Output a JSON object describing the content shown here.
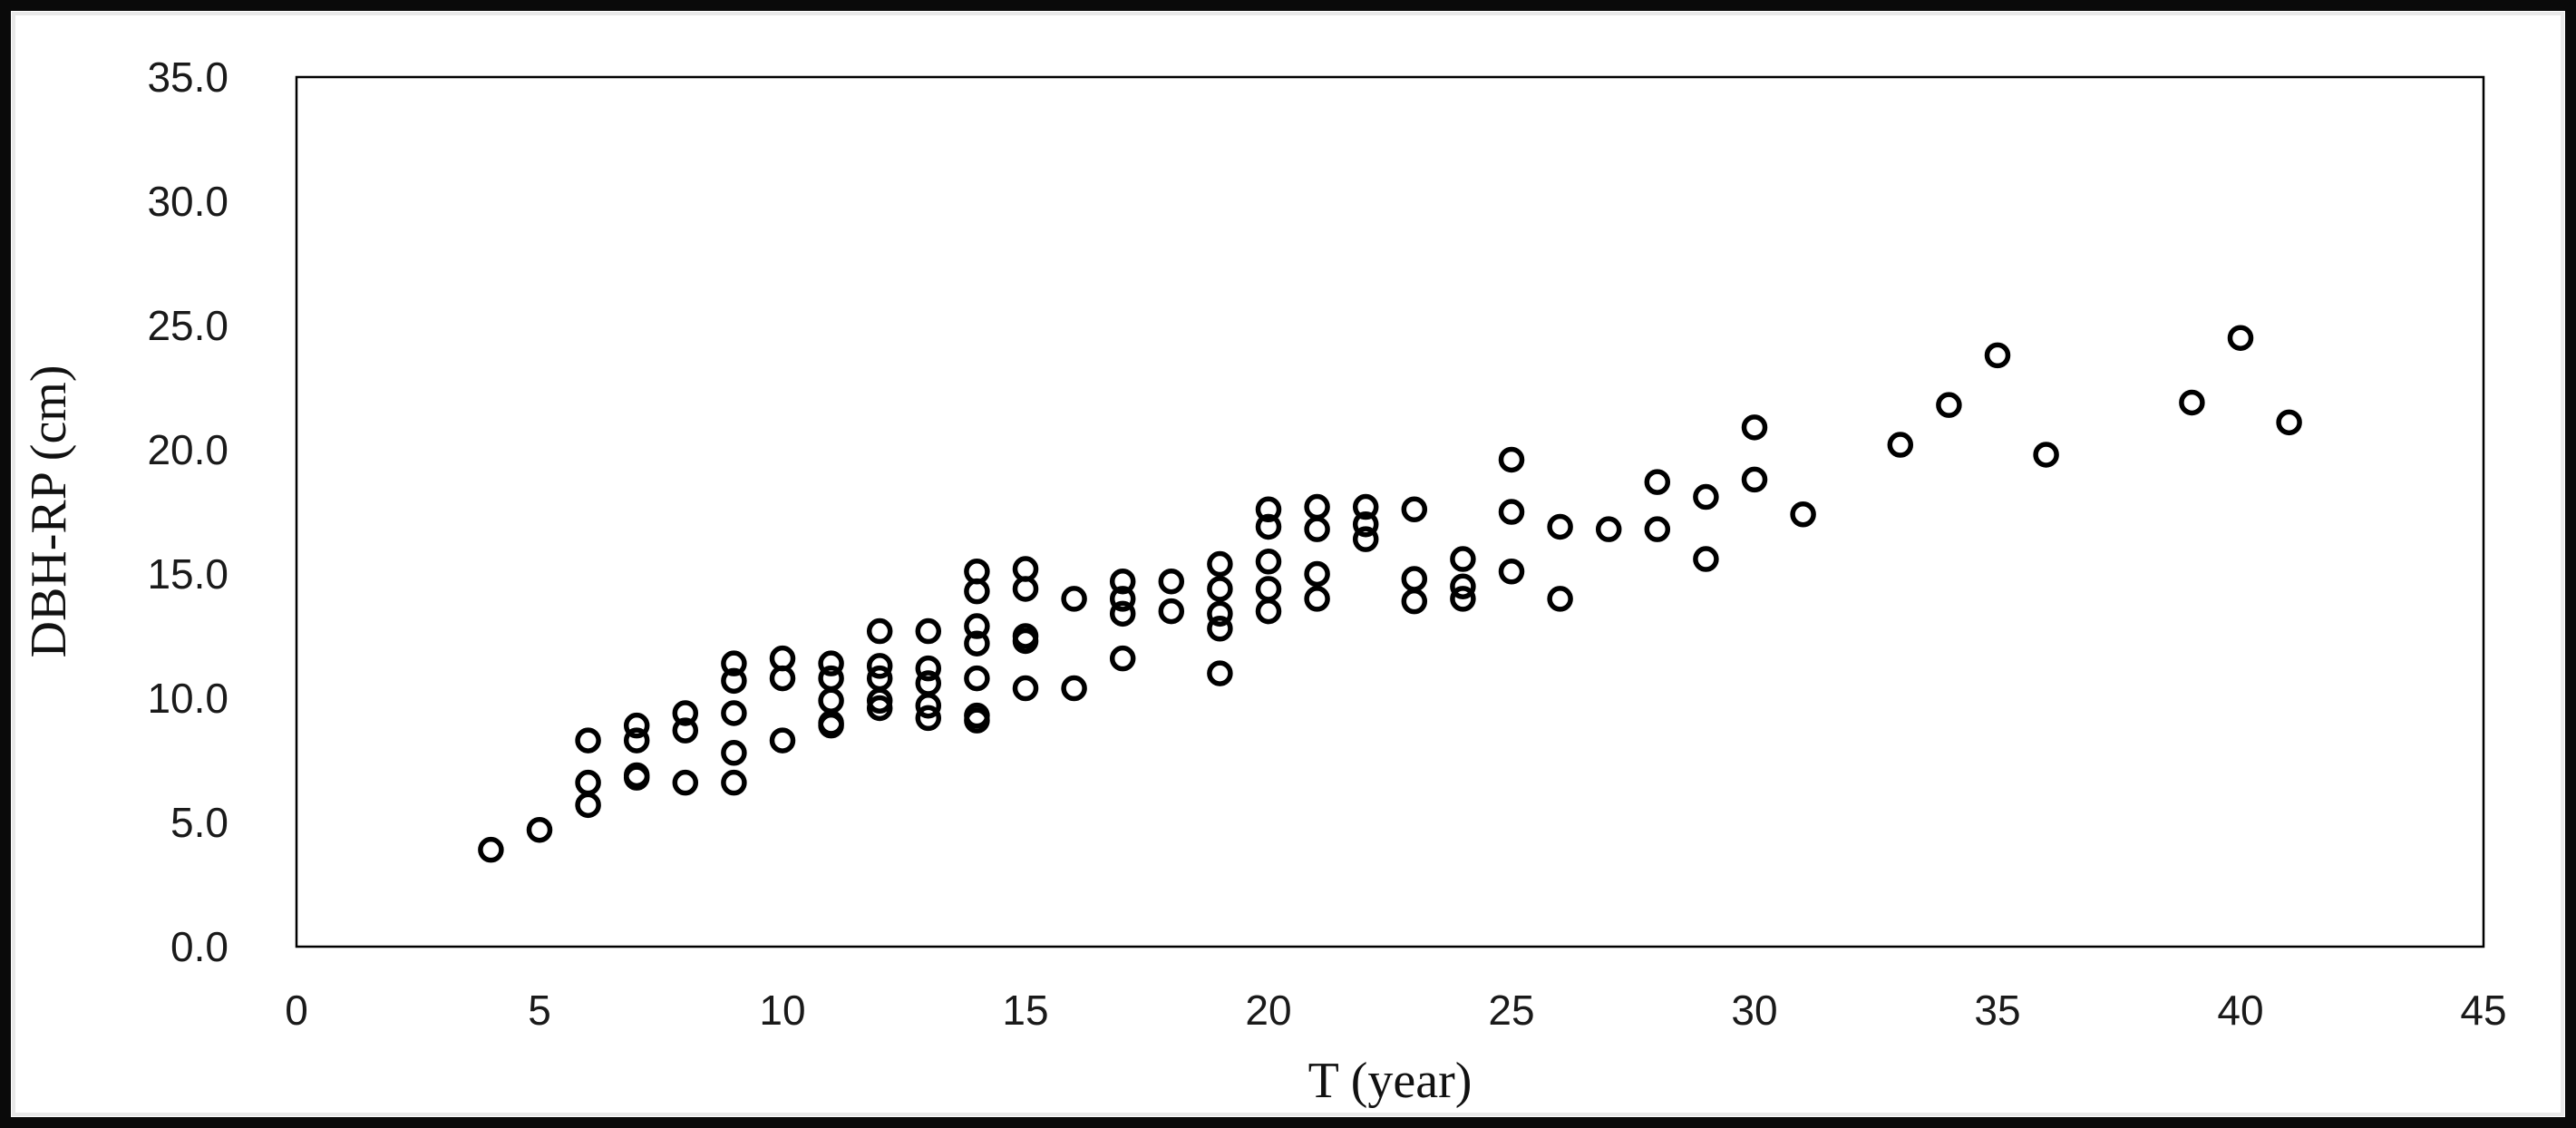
{
  "chart_data": {
    "type": "scatter",
    "title": "",
    "xlabel": "T (year)",
    "ylabel": "DBH-RP (cm)",
    "xlim": [
      0,
      45
    ],
    "ylim": [
      0,
      35
    ],
    "x_ticks": [
      0,
      5,
      10,
      15,
      20,
      25,
      30,
      35,
      40,
      45
    ],
    "x_tick_labels": [
      "0",
      "5",
      "10",
      "15",
      "20",
      "25",
      "30",
      "35",
      "40",
      "45"
    ],
    "y_ticks": [
      0,
      5,
      10,
      15,
      20,
      25,
      30,
      35
    ],
    "y_tick_labels": [
      "0.0",
      "5.0",
      "10.0",
      "15.0",
      "20.0",
      "25.0",
      "30.0",
      "35.0"
    ],
    "grid": false,
    "legend_position": "none",
    "marker": {
      "shape": "open-circle",
      "stroke_color": "#000000",
      "fill": "none"
    },
    "frame_color": "#000000",
    "series": [
      {
        "name": "DBH-RP",
        "points": [
          [
            4,
            3.9
          ],
          [
            5,
            4.7
          ],
          [
            6,
            8.3
          ],
          [
            6,
            6.6
          ],
          [
            6,
            5.7
          ],
          [
            7,
            8.9
          ],
          [
            7,
            8.3
          ],
          [
            7,
            6.9
          ],
          [
            7,
            6.8
          ],
          [
            8,
            9.4
          ],
          [
            8,
            8.7
          ],
          [
            8,
            6.6
          ],
          [
            9,
            11.4
          ],
          [
            9,
            10.7
          ],
          [
            9,
            9.4
          ],
          [
            9,
            7.8
          ],
          [
            9,
            6.6
          ],
          [
            10,
            11.6
          ],
          [
            10,
            10.8
          ],
          [
            10,
            8.3
          ],
          [
            11,
            11.4
          ],
          [
            11,
            10.8
          ],
          [
            11,
            9.9
          ],
          [
            11,
            9.0
          ],
          [
            11,
            8.9
          ],
          [
            12,
            12.7
          ],
          [
            12,
            11.3
          ],
          [
            12,
            10.8
          ],
          [
            12,
            9.9
          ],
          [
            12,
            9.6
          ],
          [
            13,
            12.7
          ],
          [
            13,
            11.2
          ],
          [
            13,
            10.6
          ],
          [
            13,
            9.7
          ],
          [
            13,
            9.2
          ],
          [
            14,
            15.1
          ],
          [
            14,
            14.3
          ],
          [
            14,
            12.9
          ],
          [
            14,
            12.2
          ],
          [
            14,
            10.8
          ],
          [
            14,
            9.3
          ],
          [
            14,
            9.1
          ],
          [
            15,
            15.2
          ],
          [
            15,
            14.4
          ],
          [
            15,
            12.5
          ],
          [
            15,
            12.3
          ],
          [
            15,
            10.4
          ],
          [
            16,
            14.0
          ],
          [
            16,
            10.4
          ],
          [
            17,
            14.7
          ],
          [
            17,
            14.0
          ],
          [
            17,
            13.4
          ],
          [
            17,
            11.6
          ],
          [
            18,
            14.7
          ],
          [
            18,
            13.5
          ],
          [
            19,
            15.4
          ],
          [
            19,
            14.4
          ],
          [
            19,
            13.4
          ],
          [
            19,
            12.8
          ],
          [
            19,
            11.0
          ],
          [
            20,
            17.6
          ],
          [
            20,
            16.9
          ],
          [
            20,
            15.5
          ],
          [
            20,
            14.4
          ],
          [
            20,
            13.5
          ],
          [
            21,
            17.7
          ],
          [
            21,
            16.8
          ],
          [
            21,
            15.0
          ],
          [
            21,
            14.0
          ],
          [
            22,
            17.7
          ],
          [
            22,
            17.0
          ],
          [
            22,
            16.4
          ],
          [
            23,
            17.6
          ],
          [
            23,
            14.8
          ],
          [
            23,
            13.9
          ],
          [
            24,
            15.6
          ],
          [
            24,
            14.5
          ],
          [
            24,
            14.0
          ],
          [
            25,
            19.6
          ],
          [
            25,
            17.5
          ],
          [
            25,
            15.1
          ],
          [
            26,
            16.9
          ],
          [
            26,
            14.0
          ],
          [
            27,
            16.8
          ],
          [
            28,
            18.7
          ],
          [
            28,
            16.8
          ],
          [
            29,
            18.1
          ],
          [
            29,
            15.6
          ],
          [
            30,
            20.9
          ],
          [
            30,
            18.8
          ],
          [
            31,
            17.4
          ],
          [
            33,
            20.2
          ],
          [
            34,
            21.8
          ],
          [
            35,
            23.8
          ],
          [
            36,
            19.8
          ],
          [
            39,
            21.9
          ],
          [
            40,
            24.5
          ],
          [
            41,
            21.1
          ]
        ]
      }
    ]
  }
}
